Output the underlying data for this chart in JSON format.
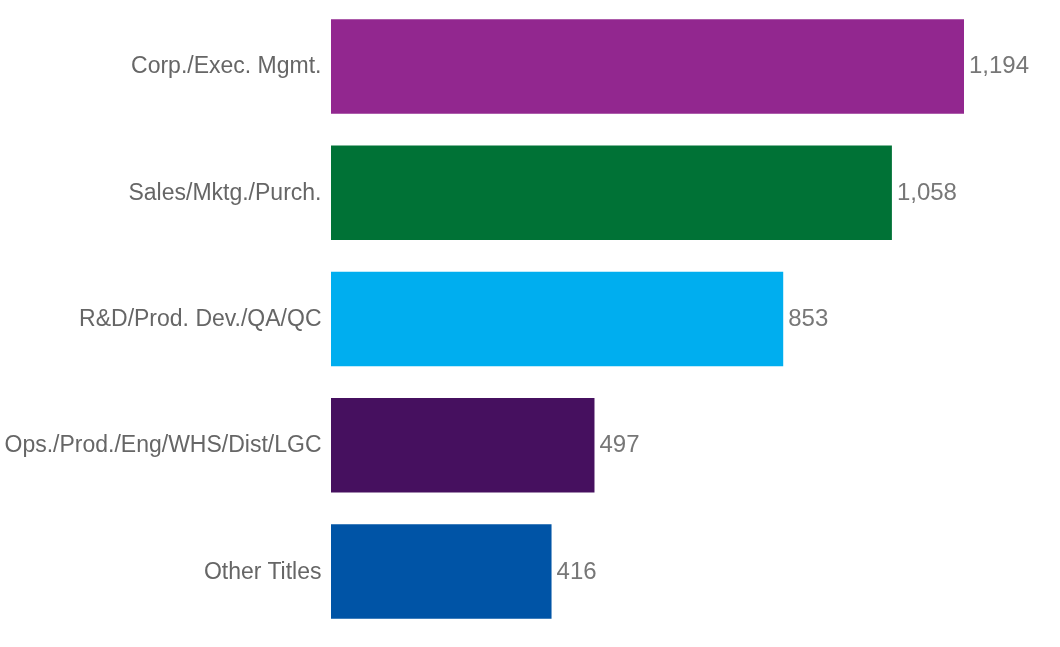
{
  "chart_data": {
    "type": "bar",
    "orientation": "horizontal",
    "categories": [
      "Corp./Exec. Mgmt.",
      "Sales/Mktg./Purch.",
      "R&D/Prod. Dev./QA/QC",
      "Ops./Prod./Eng/WHS/Dist/LGC",
      "Other Titles"
    ],
    "values": [
      1194,
      1058,
      853,
      497,
      416
    ],
    "colors": [
      "#92278f",
      "#007236",
      "#00aeef",
      "#46105f",
      "#0054a6"
    ],
    "value_labels": [
      "1,194",
      "1,058",
      "853",
      "497",
      "416"
    ]
  }
}
